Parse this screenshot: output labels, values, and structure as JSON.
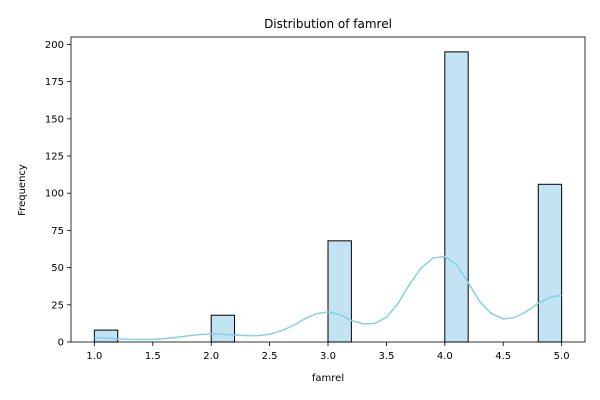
{
  "chart_data": {
    "type": "bar",
    "title": "Distribution of famrel",
    "xlabel": "famrel",
    "ylabel": "Frequency",
    "xlim": [
      0.8,
      5.2
    ],
    "ylim": [
      0,
      205
    ],
    "bin_width": 0.2,
    "bars": [
      {
        "x0": 1.0,
        "x1": 1.2,
        "value": 8
      },
      {
        "x0": 2.0,
        "x1": 2.2,
        "value": 18
      },
      {
        "x0": 3.0,
        "x1": 3.2,
        "value": 68
      },
      {
        "x0": 4.0,
        "x1": 4.2,
        "value": 195
      },
      {
        "x0": 4.8,
        "x1": 5.0,
        "value": 106
      }
    ],
    "x_ticks": [
      1.0,
      1.5,
      2.0,
      2.5,
      3.0,
      3.5,
      4.0,
      4.5,
      5.0
    ],
    "x_tick_labels": [
      "1.0",
      "1.5",
      "2.0",
      "2.5",
      "3.0",
      "3.5",
      "4.0",
      "4.5",
      "5.0"
    ],
    "y_ticks": [
      0,
      25,
      50,
      75,
      100,
      125,
      150,
      175,
      200
    ],
    "y_tick_labels": [
      "0",
      "25",
      "50",
      "75",
      "100",
      "125",
      "150",
      "175",
      "200"
    ],
    "kde": {
      "x": [
        1.0,
        1.1,
        1.2,
        1.3,
        1.4,
        1.5,
        1.6,
        1.7,
        1.8,
        1.9,
        2.0,
        2.1,
        2.2,
        2.3,
        2.4,
        2.5,
        2.6,
        2.7,
        2.8,
        2.9,
        3.0,
        3.1,
        3.2,
        3.3,
        3.4,
        3.5,
        3.6,
        3.7,
        3.8,
        3.9,
        4.0,
        4.1,
        4.2,
        4.3,
        4.4,
        4.5,
        4.6,
        4.7,
        4.8,
        4.9,
        5.0
      ],
      "y": [
        3,
        2.6,
        2.1,
        1.8,
        1.7,
        1.8,
        2.3,
        3.1,
        4.1,
        5.0,
        5.5,
        5.3,
        4.7,
        4.3,
        4.3,
        5.2,
        7.5,
        11,
        15.5,
        19,
        20.2,
        18.5,
        14.5,
        12.2,
        12.5,
        16.5,
        26,
        39,
        50,
        56.5,
        57.5,
        52,
        40,
        27,
        19,
        15.5,
        16.5,
        20.5,
        26,
        30,
        31.5
      ]
    },
    "colors": {
      "bar_fill": "#c2e4f2",
      "bar_edge": "#000000",
      "kde_line": "#87ceeb"
    },
    "grid": false,
    "legend": "none"
  }
}
